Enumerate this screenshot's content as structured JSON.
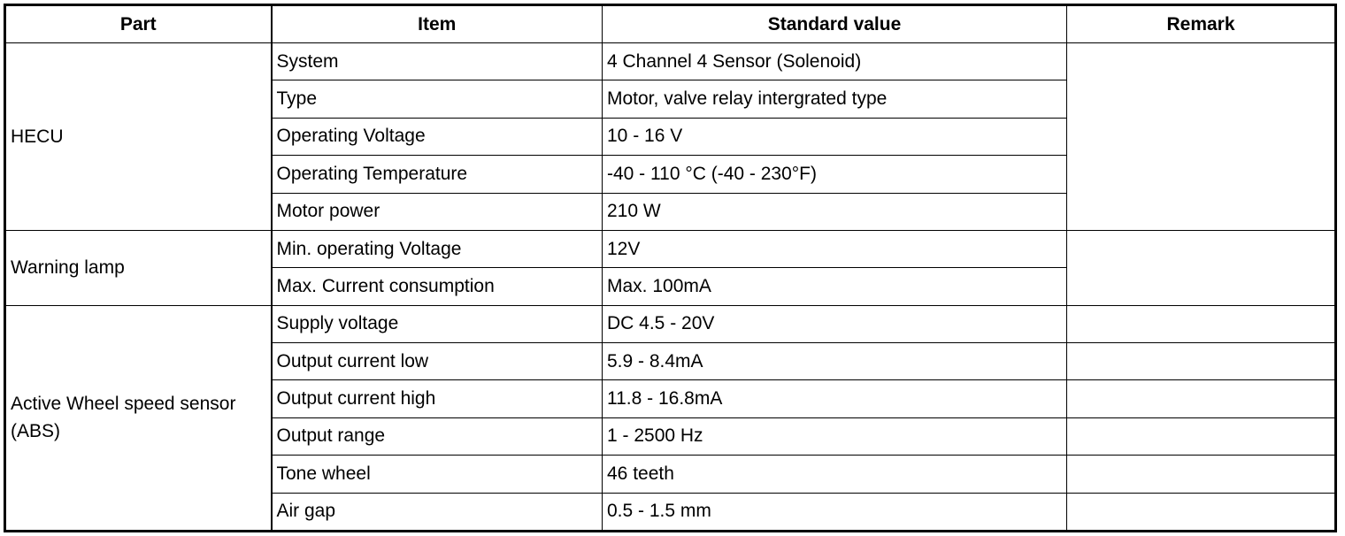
{
  "headers": [
    "Part",
    "Item",
    "Standard value",
    "Remark"
  ],
  "groups": [
    {
      "part": "HECU",
      "rows": [
        {
          "item": "System",
          "value": "4 Channel 4 Sensor (Solenoid)"
        },
        {
          "item": "Type",
          "value": "Motor, valve relay intergrated type"
        },
        {
          "item": "Operating Voltage",
          "value": "10 - 16 V"
        },
        {
          "item": "Operating Temperature",
          "value": "-40 - 110 °C (-40 - 230°F)"
        },
        {
          "item": "Motor power",
          "value": "210 W"
        }
      ]
    },
    {
      "part": "Warning lamp",
      "rows": [
        {
          "item": "Min. operating Voltage",
          "value": "12V"
        },
        {
          "item": "Max. Current consumption",
          "value": "Max. 100mA"
        }
      ]
    },
    {
      "part": "Active Wheel speed sensor (ABS)",
      "rows": [
        {
          "item": "Supply voltage",
          "value": "DC 4.5 - 20V"
        },
        {
          "item": "Output current low",
          "value": "5.9 - 8.4mA"
        },
        {
          "item": "Output current high",
          "value": "11.8 - 16.8mA"
        },
        {
          "item": "Output range",
          "value": "1 - 2500 Hz"
        },
        {
          "item": "Tone wheel",
          "value": "46 teeth"
        },
        {
          "item": "Air gap",
          "value": "0.5 - 1.5 mm"
        }
      ]
    }
  ]
}
